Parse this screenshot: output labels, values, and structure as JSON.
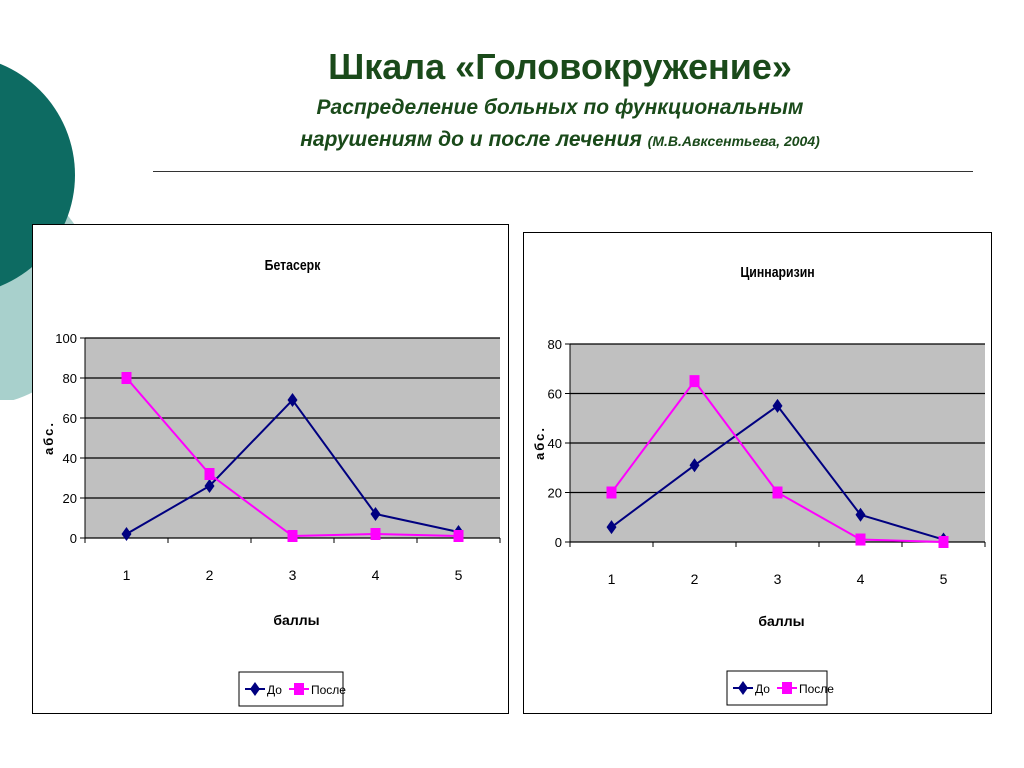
{
  "header": {
    "title": "Шкала «Головокружение»",
    "subtitle_line1": "Распределение больных по функциональным",
    "subtitle_line2": "нарушениям до и после лечения",
    "citation": "(М.В.Авксентьева,  2004)"
  },
  "colors": {
    "series_do": "#000080",
    "series_posle": "#ff00ff",
    "plot_bg": "#c0c0c0",
    "title_text": "#1a4a1a",
    "deco_dark": "#0d6b62",
    "deco_light": "#a8d0cc"
  },
  "chart_data": [
    {
      "type": "line",
      "title": "Бетасерк",
      "xlabel": "баллы",
      "ylabel": "абс.",
      "categories": [
        "1",
        "2",
        "3",
        "4",
        "5"
      ],
      "ylim": [
        0,
        100
      ],
      "yticks": [
        "0",
        "20",
        "40",
        "60",
        "80",
        "100"
      ],
      "grid": true,
      "legend": "bottom",
      "series": [
        {
          "name": "До",
          "marker": "diamond",
          "values": [
            2,
            26,
            69,
            12,
            3
          ]
        },
        {
          "name": "После",
          "marker": "square",
          "values": [
            80,
            32,
            1,
            2,
            1
          ]
        }
      ]
    },
    {
      "type": "line",
      "title": "Циннаризин",
      "xlabel": "баллы",
      "ylabel": "абс.",
      "categories": [
        "1",
        "2",
        "3",
        "4",
        "5"
      ],
      "ylim": [
        0,
        80
      ],
      "yticks": [
        "0",
        "20",
        "40",
        "60",
        "80"
      ],
      "grid": true,
      "legend": "bottom",
      "series": [
        {
          "name": "До",
          "marker": "diamond",
          "values": [
            6,
            31,
            55,
            11,
            1
          ]
        },
        {
          "name": "После",
          "marker": "square",
          "values": [
            20,
            65,
            20,
            1,
            0
          ]
        }
      ]
    }
  ]
}
